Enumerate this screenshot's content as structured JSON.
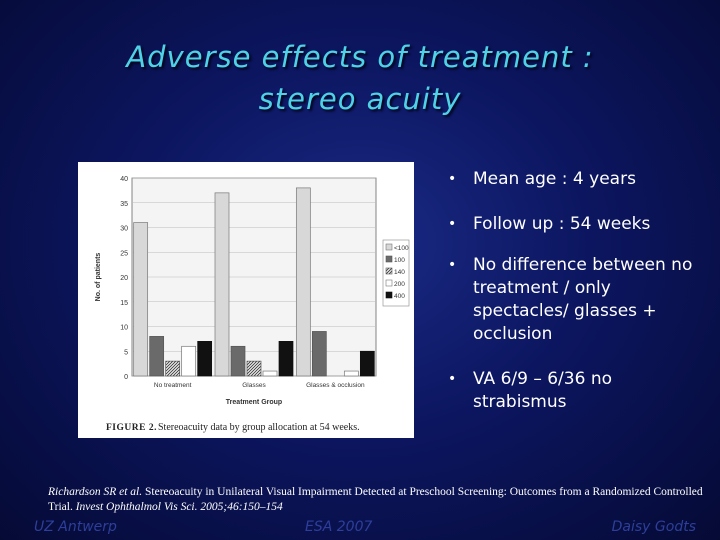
{
  "slide": {
    "title_line1": "Adverse effects of treatment :",
    "title_line2": "stereo acuity"
  },
  "bullets": [
    "Mean age : 4 years",
    "Follow up : 54 weeks",
    "No difference between no treatment / only spectacles/ glasses + occlusion",
    "VA 6/9 – 6/36 no strabismus"
  ],
  "reference": {
    "authors": "Richardson SR et al.",
    "title": "Stereoacuity in Unilateral Visual Impairment Detected at Preschool Screening: Outcomes from a Randomized Controlled Trial.",
    "journal": "Invest Ophthalmol Vis Sci.",
    "citation": "2005;46:150–154"
  },
  "footer": {
    "left": "UZ Antwerp",
    "center": "ESA 2007",
    "right": "Daisy Godts"
  },
  "chart_data": {
    "type": "bar",
    "categories": [
      "No treatment",
      "Glasses",
      "Glasses & occlusion"
    ],
    "series": [
      {
        "name": "<100",
        "values": [
          31,
          37,
          38
        ]
      },
      {
        "name": "100",
        "values": [
          8,
          6,
          9
        ]
      },
      {
        "name": "140",
        "values": [
          3,
          3,
          0
        ]
      },
      {
        "name": "200",
        "values": [
          6,
          1,
          1
        ]
      },
      {
        "name": "400",
        "values": [
          7,
          7,
          5
        ]
      }
    ],
    "ylim": [
      0,
      40
    ],
    "yticks": [
      0,
      5,
      10,
      15,
      20,
      25,
      30,
      35,
      40
    ],
    "ylabel": "No. of patients",
    "xlabel": "Treatment Group",
    "caption_label": "FIGURE 2.",
    "caption_text": "Stereoacuity data by group allocation at 54 weeks.",
    "legend_position": "right",
    "grid": "horizontal"
  }
}
